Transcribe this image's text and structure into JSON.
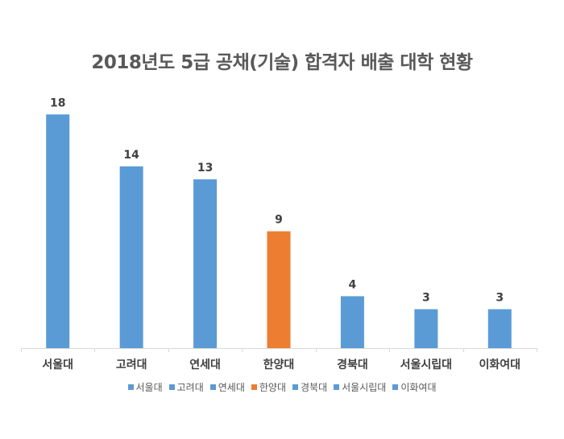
{
  "chart_data": {
    "type": "bar",
    "title": "2018년도 5급 공채(기술) 합격자 배출 대학 현황",
    "xlabel": "",
    "ylabel": "",
    "categories": [
      "서울대",
      "고려대",
      "연세대",
      "한양대",
      "경북대",
      "서울시립대",
      "이화여대"
    ],
    "values": [
      18,
      14,
      13,
      9,
      4,
      3,
      3
    ],
    "colors": [
      "#5B9BD5",
      "#5B9BD5",
      "#5B9BD5",
      "#ED7D31",
      "#5B9BD5",
      "#5B9BD5",
      "#5B9BD5"
    ],
    "ylim": [
      0,
      18
    ],
    "grid": false,
    "data_labels": true,
    "legend": {
      "position": "bottom",
      "entries": [
        "서울대",
        "고려대",
        "연세대",
        "한양대",
        "경북대",
        "서울시립대",
        "이화여대"
      ]
    }
  }
}
